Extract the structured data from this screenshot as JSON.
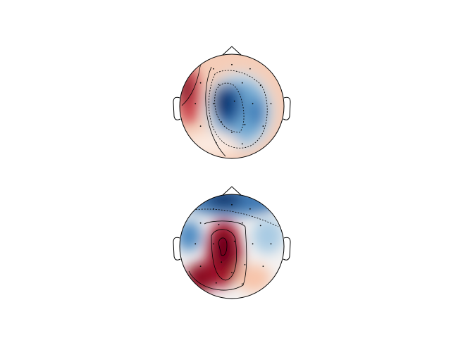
{
  "chart_data": [
    {
      "type": "topomap"
    },
    {
      "type": "topomap"
    }
  ]
}
